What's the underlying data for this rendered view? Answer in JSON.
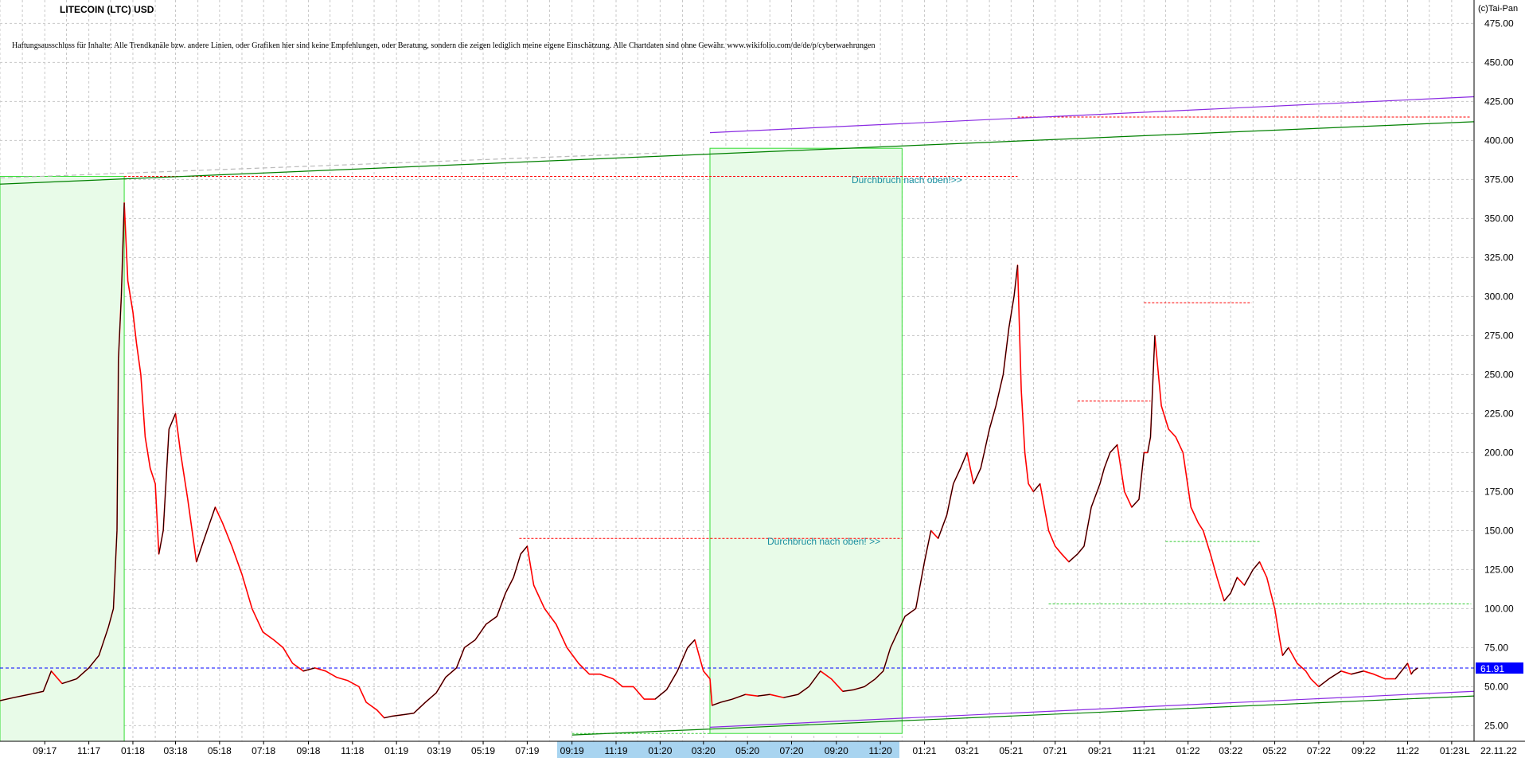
{
  "header": {
    "title": "LITECOIN (LTC) USD",
    "disclaimer": "Haftungsausschluss für Inhalte: Alle Trendkanäle bzw. andere Linien, oder Grafiken hier sind keine Empfehlungen, oder Beratung, sondern die zeigen lediglich meine eigene Einschätzung. Alle Chartdaten sind ohne Gewähr.  www.wikifolio.com/de/de/p/cyberwaehrungen",
    "copyright": "(c)Tai-Pan"
  },
  "colors": {
    "price_up": "#000000",
    "price_down": "#ff0000",
    "grid": "#c8c8c8",
    "trend_green": "#008000",
    "trend_purple": "#8a2be2",
    "resistance_red": "#ff0000",
    "support_green": "#33cc33",
    "zone_fill": "#e8fbe8",
    "zone_border": "#33dd33",
    "last_price": "#0000ff",
    "axis_band": "#a8d4f0",
    "annotation": "#1a8fa0"
  },
  "annotations": [
    {
      "text": "Durchbruch nach oben! >>",
      "x": "2020-05",
      "y": 145
    },
    {
      "text": "Durchbruch nach oben!>>",
      "x": "2021-03",
      "y": 382
    }
  ],
  "last_price_label": "61.91",
  "date_stamp": "22.11.22",
  "corner_label": "L",
  "chart_data": {
    "type": "line",
    "title": "LITECOIN (LTC) USD",
    "xlabel": "",
    "ylabel": "",
    "x_range": [
      "2017-07",
      "2023-02"
    ],
    "ylim": [
      15,
      490
    ],
    "y_ticks": [
      25,
      50,
      75,
      100,
      125,
      150,
      175,
      200,
      225,
      250,
      275,
      300,
      325,
      350,
      375,
      400,
      425,
      450,
      475
    ],
    "y_tick_labels": [
      "25.00",
      "50.00",
      "75.00",
      "100.00",
      "125.00",
      "150.00",
      "175.00",
      "200.00",
      "225.00",
      "250.00",
      "275.00",
      "300.00",
      "325.00",
      "350.00",
      "375.00",
      "400.00",
      "425.00",
      "450.00",
      "475.00"
    ],
    "x_ticks": [
      "2017-09",
      "2017-11",
      "2018-01",
      "2018-03",
      "2018-05",
      "2018-07",
      "2018-09",
      "2018-11",
      "2019-01",
      "2019-03",
      "2019-05",
      "2019-07",
      "2019-09",
      "2019-11",
      "2020-01",
      "2020-03",
      "2020-05",
      "2020-07",
      "2020-09",
      "2020-11",
      "2021-01",
      "2021-03",
      "2021-05",
      "2021-07",
      "2021-09",
      "2021-11",
      "2022-01",
      "2022-03",
      "2022-05",
      "2022-07",
      "2022-09",
      "2022-11",
      "2023-01"
    ],
    "x_tick_labels": [
      "09:17",
      "11:17",
      "01:18",
      "03:18",
      "05:18",
      "07:18",
      "09:18",
      "11:18",
      "01:19",
      "03:19",
      "05:19",
      "07:19",
      "09:19",
      "11:19",
      "01:20",
      "03:20",
      "05:20",
      "07:20",
      "09:20",
      "11:20",
      "01:21",
      "03:21",
      "05:21",
      "07:21",
      "09:21",
      "11:21",
      "01:22",
      "03:22",
      "05:22",
      "07:22",
      "09:22",
      "11:22",
      "01:23"
    ],
    "grid": true,
    "last_price": 61.91,
    "series": [
      {
        "values_x": [
          "2017-07-01",
          "2017-07-20",
          "2017-08-10",
          "2017-08-30",
          "2017-09-10",
          "2017-09-25",
          "2017-10-15",
          "2017-11-01",
          "2017-11-15",
          "2017-11-28",
          "2017-12-05",
          "2017-12-10",
          "2017-12-12",
          "2017-12-16",
          "2017-12-20",
          "2017-12-25",
          "2018-01-01",
          "2018-01-06",
          "2018-01-12",
          "2018-01-18",
          "2018-01-25",
          "2018-02-01",
          "2018-02-06",
          "2018-02-12",
          "2018-02-20",
          "2018-03-01",
          "2018-03-08",
          "2018-03-18",
          "2018-03-30",
          "2018-04-10",
          "2018-04-25",
          "2018-05-05",
          "2018-05-18",
          "2018-06-01",
          "2018-06-15",
          "2018-06-30",
          "2018-07-15",
          "2018-07-28",
          "2018-08-10",
          "2018-08-25",
          "2018-09-10",
          "2018-09-25",
          "2018-10-10",
          "2018-10-25",
          "2018-11-10",
          "2018-11-20",
          "2018-12-05",
          "2018-12-15",
          "2018-12-25",
          "2019-01-10",
          "2019-01-25",
          "2019-02-10",
          "2019-02-25",
          "2019-03-10",
          "2019-03-25",
          "2019-04-05",
          "2019-04-20",
          "2019-05-05",
          "2019-05-20",
          "2019-06-01",
          "2019-06-12",
          "2019-06-22",
          "2019-07-01",
          "2019-07-10",
          "2019-07-25",
          "2019-08-10",
          "2019-08-25",
          "2019-09-10",
          "2019-09-25",
          "2019-10-10",
          "2019-10-28",
          "2019-11-10",
          "2019-11-25",
          "2019-12-10",
          "2019-12-25",
          "2020-01-10",
          "2020-01-25",
          "2020-02-08",
          "2020-02-18",
          "2020-03-01",
          "2020-03-10",
          "2020-03-13",
          "2020-03-25",
          "2020-04-10",
          "2020-04-28",
          "2020-05-15",
          "2020-06-01",
          "2020-06-20",
          "2020-07-10",
          "2020-07-25",
          "2020-08-10",
          "2020-08-25",
          "2020-09-10",
          "2020-09-25",
          "2020-10-10",
          "2020-10-25",
          "2020-11-05",
          "2020-11-15",
          "2020-11-25",
          "2020-12-05",
          "2020-12-20",
          "2021-01-01",
          "2021-01-10",
          "2021-01-20",
          "2021-02-01",
          "2021-02-10",
          "2021-02-20",
          "2021-03-01",
          "2021-03-10",
          "2021-03-20",
          "2021-04-01",
          "2021-04-10",
          "2021-04-20",
          "2021-04-28",
          "2021-05-05",
          "2021-05-10",
          "2021-05-15",
          "2021-05-20",
          "2021-05-25",
          "2021-06-01",
          "2021-06-10",
          "2021-06-22",
          "2021-07-01",
          "2021-07-10",
          "2021-07-20",
          "2021-08-01",
          "2021-08-10",
          "2021-08-20",
          "2021-09-01",
          "2021-09-07",
          "2021-09-15",
          "2021-09-25",
          "2021-10-05",
          "2021-10-15",
          "2021-10-25",
          "2021-11-01",
          "2021-11-06",
          "2021-11-10",
          "2021-11-16",
          "2021-11-25",
          "2021-12-05",
          "2021-12-15",
          "2021-12-25",
          "2022-01-05",
          "2022-01-15",
          "2022-01-22",
          "2022-02-01",
          "2022-02-10",
          "2022-02-20",
          "2022-03-01",
          "2022-03-10",
          "2022-03-20",
          "2022-04-01",
          "2022-04-10",
          "2022-04-20",
          "2022-05-01",
          "2022-05-08",
          "2022-05-12",
          "2022-05-20",
          "2022-06-01",
          "2022-06-13",
          "2022-06-20",
          "2022-07-01",
          "2022-07-15",
          "2022-08-01",
          "2022-08-15",
          "2022-09-01",
          "2022-09-15",
          "2022-10-01",
          "2022-10-15",
          "2022-11-01",
          "2022-11-06",
          "2022-11-09",
          "2022-11-15",
          "2022-11-22"
        ],
        "values_y": [
          41,
          43,
          45,
          47,
          60,
          52,
          55,
          62,
          70,
          88,
          100,
          150,
          260,
          300,
          360,
          310,
          290,
          270,
          250,
          210,
          190,
          180,
          135,
          150,
          215,
          225,
          200,
          170,
          130,
          145,
          165,
          155,
          140,
          122,
          100,
          85,
          80,
          75,
          65,
          60,
          62,
          60,
          56,
          54,
          50,
          40,
          35,
          30,
          31,
          32,
          33,
          40,
          46,
          56,
          62,
          75,
          80,
          90,
          95,
          110,
          120,
          135,
          140,
          115,
          100,
          90,
          75,
          65,
          58,
          58,
          55,
          50,
          50,
          42,
          42,
          48,
          60,
          75,
          80,
          60,
          55,
          38,
          40,
          42,
          45,
          44,
          45,
          43,
          45,
          50,
          60,
          55,
          47,
          48,
          50,
          55,
          60,
          75,
          85,
          95,
          100,
          130,
          150,
          145,
          160,
          180,
          190,
          200,
          180,
          190,
          215,
          230,
          250,
          280,
          300,
          320,
          240,
          200,
          180,
          175,
          180,
          150,
          140,
          135,
          130,
          135,
          140,
          165,
          180,
          190,
          200,
          205,
          175,
          165,
          170,
          200,
          200,
          210,
          275,
          230,
          215,
          210,
          200,
          165,
          155,
          150,
          135,
          120,
          105,
          110,
          120,
          115,
          125,
          130,
          120,
          100,
          80,
          70,
          75,
          65,
          60,
          55,
          50,
          55,
          60,
          58,
          60,
          58,
          55,
          55,
          65,
          58,
          60,
          62
        ]
      }
    ],
    "reference_lines": [
      {
        "label": "resistance",
        "y": 377
      },
      {
        "label": "resistance",
        "y": 415
      },
      {
        "label": "resistance",
        "y": 145
      },
      {
        "label": "resistance",
        "y": 233
      },
      {
        "label": "resistance",
        "y": 296
      },
      {
        "label": "support",
        "y": 143
      },
      {
        "label": "support",
        "y": 103
      },
      {
        "label": "last price",
        "y": 61.91
      }
    ]
  }
}
